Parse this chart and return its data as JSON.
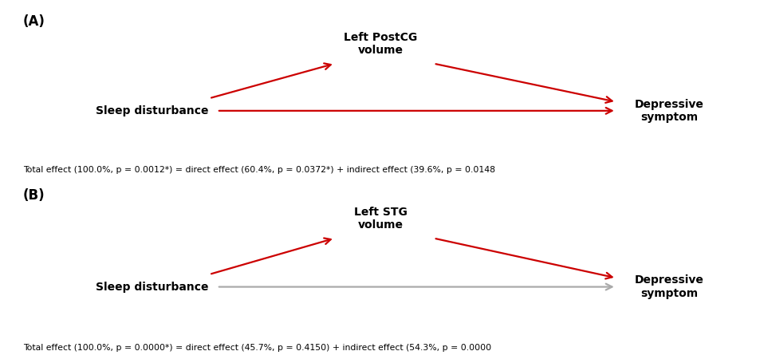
{
  "panel_A": {
    "label": "(A)",
    "mediator": "Left PostCG\nvolume",
    "independent": "Sleep disturbance",
    "dependent": "Depressive\nsymptom",
    "direct_arrow_color": "#cc0000",
    "mediator_arrow_color": "#cc0000",
    "caption": "Total effect (100.0%, p = 0.0012*) = direct effect (60.4%, p = 0.0372*) + indirect effect (39.6%, p = 0.0148"
  },
  "panel_B": {
    "label": "(B)",
    "mediator": "Left STG\nvolume",
    "independent": "Sleep disturbance",
    "dependent": "Depressive\nsymptom",
    "direct_arrow_color": "#aaaaaa",
    "mediator_arrow_color": "#cc0000",
    "caption": "Total effect (100.0%, p = 0.0000*) = direct effect (45.7%, p = 0.4150) + indirect effect (54.3%, p = 0.0000"
  },
  "background_color": "#ffffff",
  "text_color": "#000000",
  "fig_width": 9.54,
  "fig_height": 4.45,
  "dpi": 100
}
